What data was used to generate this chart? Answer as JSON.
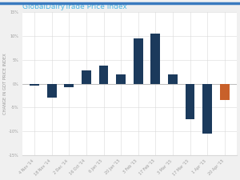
{
  "title": "GlobalDairyTrade Price Index",
  "title_color": "#4ab5e3",
  "ylabel": "CHANGE IN GDT PRICE INDEX",
  "categories": [
    "4 Nov '14",
    "18 Nov '14",
    "2 Dec '14",
    "16 Oct '14",
    "6 Jan '15",
    "20 Jan '15",
    "3 Feb '15",
    "17 Feb '15",
    "3 Mar '15",
    "17 Mar '15",
    "1 Apr '15",
    "20 Apr '15"
  ],
  "values": [
    -0.5,
    -3.0,
    -0.8,
    2.8,
    3.8,
    2.0,
    9.5,
    10.5,
    2.0,
    -7.5,
    -10.5,
    -3.5
  ],
  "bar_colors": [
    "#1b3a5c",
    "#1b3a5c",
    "#1b3a5c",
    "#1b3a5c",
    "#1b3a5c",
    "#1b3a5c",
    "#1b3a5c",
    "#1b3a5c",
    "#1b3a5c",
    "#1b3a5c",
    "#1b3a5c",
    "#c8602a"
  ],
  "ylim": [
    -15,
    15
  ],
  "yticks": [
    -15,
    -10,
    -5,
    0,
    5,
    10,
    15
  ],
  "background_color": "#f0f0f0",
  "plot_background": "#ffffff",
  "grid_color": "#d8d8d8",
  "border_top_color": "#3a7abf",
  "title_fontsize": 6.5,
  "ylabel_fontsize": 3.8,
  "tick_fontsize": 3.5
}
